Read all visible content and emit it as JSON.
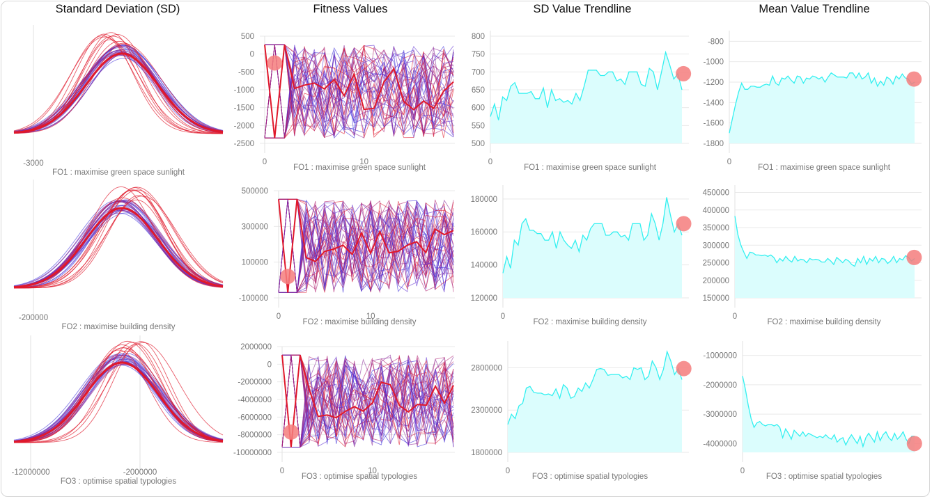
{
  "column_titles": [
    "Standard Deviation (SD)",
    "Fitness Values",
    "SD Value Trendline",
    "Mean Value Trendline"
  ],
  "colors": {
    "red": "#e0182b",
    "blue": "#3a2bd8",
    "purple": "#8a2a9a",
    "cyan": "#33f0f0",
    "cyan_fill": "#dbfdfd",
    "marker": "#f47c7c",
    "axis_text": "#777777",
    "grid": "#e9e9e9"
  },
  "chart_data": [
    {
      "type": "line",
      "row": 0,
      "column": "sd",
      "xlabel": "FO1 : maximise green space sunlight",
      "x_ticks": [
        "-3000"
      ],
      "curves": {
        "red": 10,
        "blue": 14,
        "purple": 8
      }
    },
    {
      "type": "line",
      "row": 0,
      "column": "fitness",
      "xlabel": "FO1 : maximise green space sunlight",
      "ylim": [
        -2500,
        500
      ],
      "y_ticks": [
        "500",
        "0",
        "-500",
        "-1000",
        "-1500",
        "-2000",
        "-2500"
      ],
      "x_ticks": [
        "0",
        "10"
      ],
      "xlim": [
        0,
        19
      ],
      "n_series": 40,
      "highlight": [
        1,
        -250
      ]
    },
    {
      "type": "area",
      "row": 0,
      "column": "sd_trend",
      "xlabel": "FO1 : maximise green space sunlight",
      "ylim": [
        500,
        800
      ],
      "y_ticks": [
        "800",
        "750",
        "700",
        "650",
        "600",
        "550",
        "500"
      ],
      "x_ticks": [
        "0"
      ],
      "values": [
        575,
        610,
        565,
        630,
        620,
        660,
        670,
        640,
        640,
        640,
        645,
        625,
        625,
        655,
        600,
        650,
        620,
        625,
        615,
        620,
        610,
        640,
        620,
        660,
        705,
        705,
        705,
        690,
        690,
        700,
        700,
        675,
        680,
        665,
        700,
        700,
        700,
        665,
        660,
        710,
        700,
        650,
        700,
        755,
        720,
        680,
        695,
        650
      ],
      "marker_index": 46
    },
    {
      "type": "area",
      "row": 0,
      "column": "mean_trend",
      "xlabel": "FO1 : maximise green space sunlight",
      "ylim": [
        -1800,
        -750
      ],
      "y_ticks": [
        "-800",
        "-1000",
        "-1200",
        "-1400",
        "-1600",
        "-1800"
      ],
      "x_ticks": [
        "0"
      ],
      "values": [
        -1700,
        -1560,
        -1420,
        -1300,
        -1210,
        -1270,
        -1270,
        -1240,
        -1240,
        -1250,
        -1250,
        -1230,
        -1220,
        -1230,
        -1140,
        -1210,
        -1230,
        -1160,
        -1170,
        -1140,
        -1180,
        -1210,
        -1140,
        -1150,
        -1210,
        -1160,
        -1170,
        -1140,
        -1150,
        -1170,
        -1150,
        -1200,
        -1150,
        -1110,
        -1130,
        -1150,
        -1150,
        -1150,
        -1160,
        -1110,
        -1110,
        -1160,
        -1110,
        -1170,
        -1150,
        -1110,
        -1210,
        -1160,
        -1240,
        -1190,
        -1230,
        -1150,
        -1170,
        -1220,
        -1140,
        -1170,
        -1120,
        -1160,
        -1170,
        -1220,
        -1200
      ],
      "marker_index": 58
    },
    {
      "type": "line",
      "row": 1,
      "column": "sd",
      "xlabel": "FO2 : maximise building density",
      "x_ticks": [
        "-200000"
      ],
      "curves": {
        "red": 10,
        "blue": 14,
        "purple": 8
      }
    },
    {
      "type": "line",
      "row": 1,
      "column": "fitness",
      "xlabel": "FO2 : maximise building density",
      "ylim": [
        -100000,
        500000
      ],
      "y_ticks": [
        "500000",
        "300000",
        "100000",
        "-100000"
      ],
      "x_ticks": [
        "0",
        "10"
      ],
      "xlim": [
        0,
        19
      ],
      "n_series": 40,
      "highlight": [
        1,
        20000
      ]
    },
    {
      "type": "area",
      "row": 1,
      "column": "sd_trend",
      "xlabel": "FO2 : maximise building density",
      "ylim": [
        120000,
        185000
      ],
      "y_ticks": [
        "180000",
        "160000",
        "140000",
        "120000"
      ],
      "x_ticks": [
        "0"
      ],
      "values": [
        135000,
        145000,
        138000,
        155000,
        152000,
        165000,
        168000,
        161000,
        161000,
        159000,
        159000,
        155000,
        155000,
        160000,
        150000,
        160000,
        155000,
        152000,
        150000,
        155000,
        148000,
        158000,
        155000,
        162000,
        165000,
        165000,
        165000,
        158000,
        158000,
        160000,
        160000,
        157000,
        158000,
        155000,
        165000,
        165000,
        165000,
        155000,
        158000,
        171000,
        165000,
        155000,
        165000,
        181000,
        170000,
        160000,
        165000,
        158000
      ],
      "marker_index": 46
    },
    {
      "type": "area",
      "row": 1,
      "column": "mean_trend",
      "xlabel": "FO2 : maximise building density",
      "ylim": [
        150000,
        455000
      ],
      "y_ticks": [
        "450000",
        "400000",
        "350000",
        "300000",
        "250000",
        "200000",
        "150000"
      ],
      "x_ticks": [
        "0"
      ],
      "values": [
        383000,
        330000,
        300000,
        280000,
        262000,
        280000,
        278000,
        272000,
        272000,
        270000,
        272000,
        268000,
        272000,
        265000,
        250000,
        262000,
        255000,
        268000,
        258000,
        252000,
        268000,
        255000,
        260000,
        258000,
        250000,
        262000,
        258000,
        260000,
        258000,
        252000,
        252000,
        262000,
        255000,
        245000,
        265000,
        258000,
        250000,
        260000,
        255000,
        245000,
        240000,
        262000,
        250000,
        268000,
        245000,
        262000,
        255000,
        268000,
        250000,
        262000,
        260000,
        248000,
        255000,
        268000,
        250000,
        262000,
        258000,
        270000,
        265000,
        255000,
        262000
      ],
      "marker_index": 58
    },
    {
      "type": "line",
      "row": 2,
      "column": "sd",
      "xlabel": "FO3 : optimise spatial typologies",
      "x_ticks": [
        "-12000000",
        "-2000000"
      ],
      "curves": {
        "red": 10,
        "blue": 14,
        "purple": 8
      }
    },
    {
      "type": "line",
      "row": 2,
      "column": "fitness",
      "xlabel": "FO3 : optimise spatial typologies",
      "ylim": [
        -10000000,
        2000000
      ],
      "y_ticks": [
        "2000000",
        "0",
        "-2000000",
        "-4000000",
        "-6000000",
        "-8000000",
        "-10000000"
      ],
      "x_ticks": [
        "0",
        "10"
      ],
      "xlim": [
        0,
        19
      ],
      "n_series": 40,
      "highlight": [
        1,
        -7700000
      ]
    },
    {
      "type": "area",
      "row": 2,
      "column": "sd_trend",
      "xlabel": "FO3 : optimise spatial typologies",
      "ylim": [
        1800000,
        3050000
      ],
      "y_ticks": [
        "2800000",
        "2300000",
        "1800000"
      ],
      "x_ticks": [
        "0"
      ],
      "values": [
        2130000,
        2250000,
        2200000,
        2350000,
        2380000,
        2560000,
        2580000,
        2510000,
        2500000,
        2500000,
        2480000,
        2490000,
        2470000,
        2550000,
        2440000,
        2600000,
        2560000,
        2440000,
        2460000,
        2560000,
        2520000,
        2620000,
        2560000,
        2660000,
        2780000,
        2790000,
        2780000,
        2710000,
        2720000,
        2720000,
        2720000,
        2680000,
        2700000,
        2660000,
        2800000,
        2780000,
        2800000,
        2660000,
        2700000,
        2880000,
        2800000,
        2660000,
        2780000,
        2990000,
        2880000,
        2720000,
        2790000,
        2660000
      ],
      "marker_index": 46
    },
    {
      "type": "area",
      "row": 2,
      "column": "mean_trend",
      "xlabel": "FO3 : optimise spatial typologies",
      "ylim": [
        -4300000,
        -700000
      ],
      "y_ticks": [
        "-1000000",
        "-2000000",
        "-3000000",
        "-4000000"
      ],
      "x_ticks": [
        "0"
      ],
      "values": [
        -1700000,
        -2150000,
        -2700000,
        -3150000,
        -3450000,
        -3300000,
        -3250000,
        -3350000,
        -3400000,
        -3350000,
        -3350000,
        -3400000,
        -3350000,
        -3450000,
        -3800000,
        -3500000,
        -3650000,
        -3850000,
        -3550000,
        -3650000,
        -3750000,
        -3600000,
        -3750000,
        -3650000,
        -3700000,
        -3750000,
        -3800000,
        -3750000,
        -3800000,
        -3700000,
        -3800000,
        -3850000,
        -3700000,
        -3950000,
        -3850000,
        -3800000,
        -4050000,
        -3850000,
        -3700000,
        -3850000,
        -4000000,
        -3750000,
        -4100000,
        -3800000,
        -3650000,
        -3800000,
        -3950000,
        -3600000,
        -3900000,
        -3700000,
        -3600000,
        -3800000,
        -3900000,
        -3650000,
        -3850000,
        -3750000,
        -3600000,
        -3850000,
        -4000000,
        -3750000,
        -3750000
      ],
      "marker_index": 58
    }
  ]
}
